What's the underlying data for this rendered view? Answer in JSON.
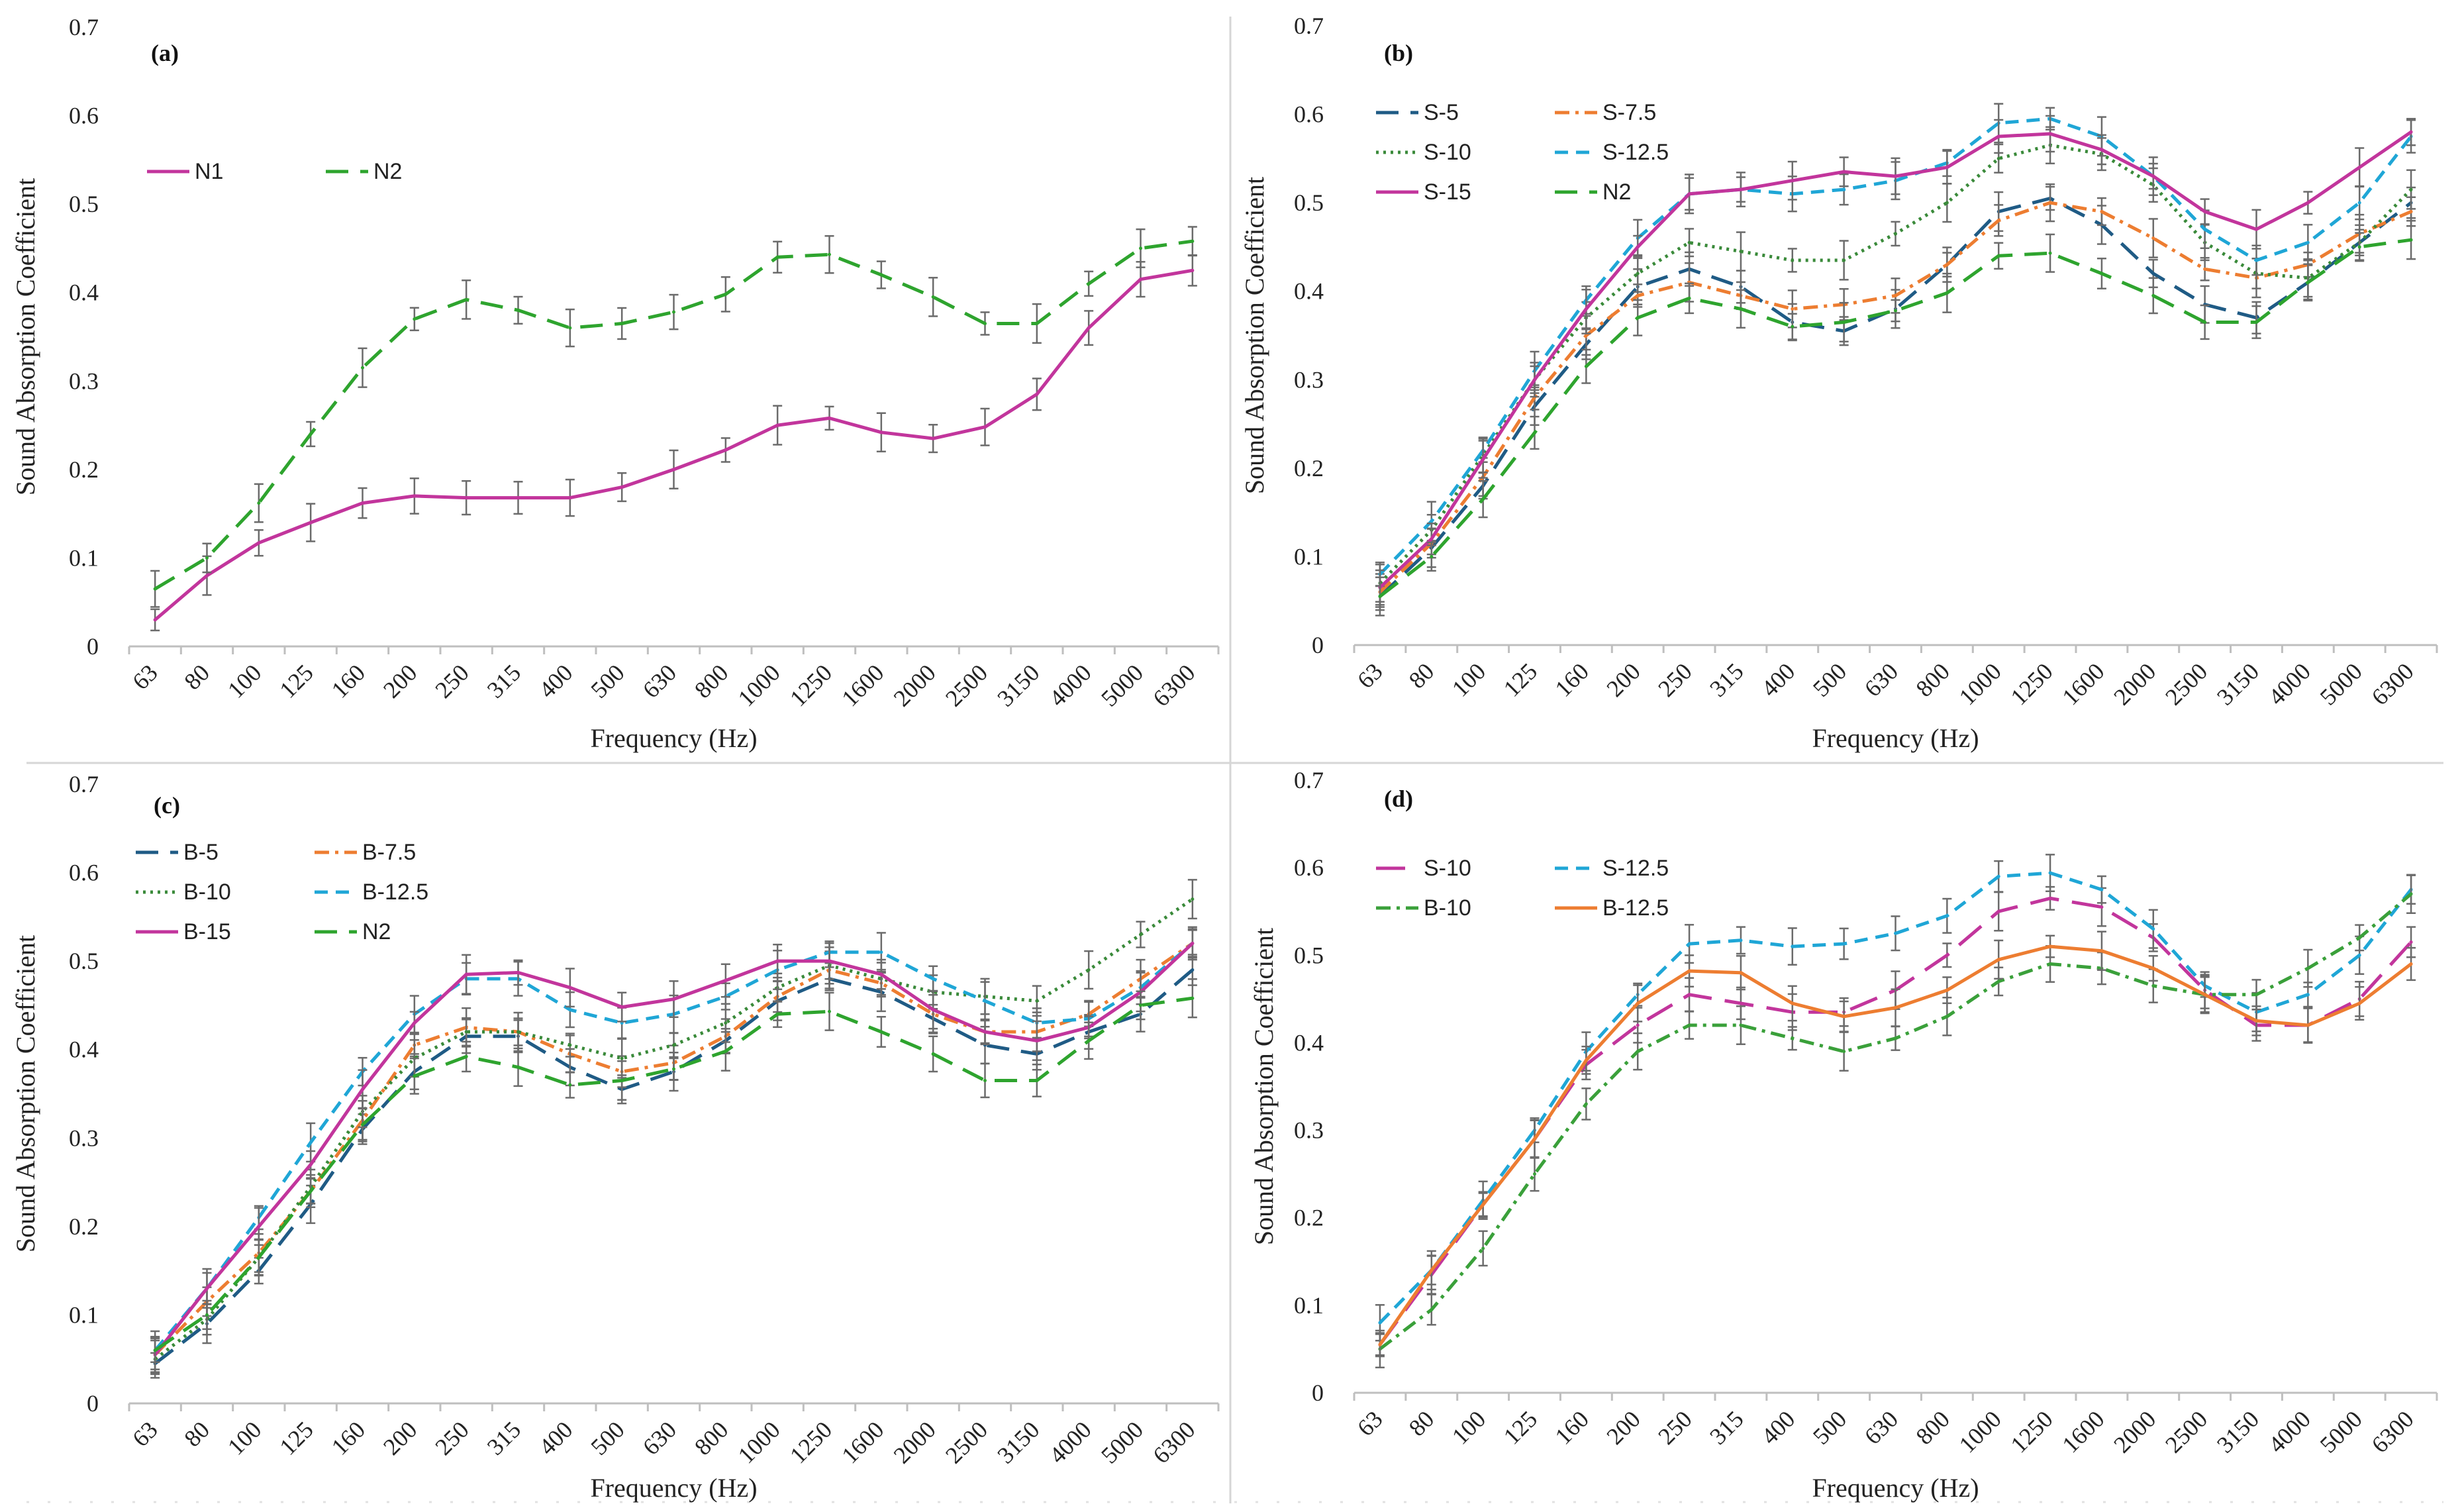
{
  "figure": {
    "x_ticks": [
      "63",
      "80",
      "100",
      "125",
      "160",
      "200",
      "250",
      "315",
      "400",
      "500",
      "630",
      "800",
      "1000",
      "1250",
      "1600",
      "2000",
      "2500",
      "3150",
      "4000",
      "5000",
      "6300"
    ],
    "y_ticks": [
      "0",
      "0.1",
      "0.2",
      "0.3",
      "0.4",
      "0.5",
      "0.6",
      "0.7"
    ]
  },
  "chart_data": [
    {
      "panel": "(a)",
      "type": "line",
      "xlabel": "Frequency (Hz)",
      "ylabel": "Sound Absorption Coefficient",
      "ylim": [
        0,
        0.7
      ],
      "categories": [
        "63",
        "80",
        "100",
        "125",
        "160",
        "200",
        "250",
        "315",
        "400",
        "500",
        "630",
        "800",
        "1000",
        "1250",
        "1600",
        "2000",
        "2500",
        "3150",
        "4000",
        "5000",
        "6300"
      ],
      "legend": "top-left",
      "series": [
        {
          "name": "N1",
          "color": "#c2359c",
          "dash": "solid",
          "values": [
            0.03,
            0.08,
            0.117,
            0.14,
            0.162,
            0.17,
            0.168,
            0.168,
            0.168,
            0.18,
            0.2,
            0.222,
            0.25,
            0.258,
            0.242,
            0.235,
            0.248,
            0.285,
            0.36,
            0.415,
            0.425
          ]
        },
        {
          "name": "N2",
          "color": "#2ea42e",
          "dash": "long",
          "values": [
            0.065,
            0.1,
            0.162,
            0.24,
            0.315,
            0.37,
            0.392,
            0.38,
            0.36,
            0.365,
            0.378,
            0.398,
            0.44,
            0.443,
            0.42,
            0.395,
            0.365,
            0.365,
            0.41,
            0.45,
            0.458
          ]
        }
      ]
    },
    {
      "panel": "(b)",
      "type": "line",
      "xlabel": "Frequency (Hz)",
      "ylabel": "Sound Absorption Coefficient",
      "ylim": [
        0,
        0.7
      ],
      "categories": [
        "63",
        "80",
        "100",
        "125",
        "160",
        "200",
        "250",
        "315",
        "400",
        "500",
        "630",
        "800",
        "1000",
        "1250",
        "1600",
        "2000",
        "2500",
        "3150",
        "4000",
        "5000",
        "6300"
      ],
      "legend": "top-left",
      "series": [
        {
          "name": "S-5",
          "color": "#1f5b85",
          "dash": "long",
          "values": [
            0.055,
            0.11,
            0.18,
            0.27,
            0.34,
            0.405,
            0.425,
            0.405,
            0.365,
            0.355,
            0.38,
            0.43,
            0.49,
            0.505,
            0.475,
            0.42,
            0.385,
            0.37,
            0.41,
            0.455,
            0.5
          ]
        },
        {
          "name": "S-7.5",
          "color": "#ed7d31",
          "dash": "dashdot",
          "values": [
            0.06,
            0.115,
            0.19,
            0.28,
            0.35,
            0.395,
            0.41,
            0.395,
            0.38,
            0.385,
            0.395,
            0.43,
            0.48,
            0.5,
            0.49,
            0.46,
            0.425,
            0.415,
            0.43,
            0.465,
            0.49
          ]
        },
        {
          "name": "S-10",
          "color": "#3a8a3a",
          "dash": "dot",
          "values": [
            0.07,
            0.13,
            0.215,
            0.3,
            0.37,
            0.42,
            0.455,
            0.445,
            0.435,
            0.435,
            0.465,
            0.5,
            0.55,
            0.565,
            0.555,
            0.52,
            0.455,
            0.42,
            0.415,
            0.455,
            0.515
          ]
        },
        {
          "name": "S-12.5",
          "color": "#1fa6d6",
          "dash": "dash",
          "values": [
            0.08,
            0.14,
            0.22,
            0.31,
            0.39,
            0.46,
            0.51,
            0.515,
            0.51,
            0.515,
            0.525,
            0.545,
            0.59,
            0.595,
            0.575,
            0.53,
            0.47,
            0.435,
            0.455,
            0.5,
            0.575
          ]
        },
        {
          "name": "S-15",
          "color": "#c2359c",
          "dash": "solid",
          "values": [
            0.065,
            0.12,
            0.21,
            0.3,
            0.38,
            0.45,
            0.51,
            0.515,
            0.525,
            0.535,
            0.53,
            0.54,
            0.575,
            0.578,
            0.56,
            0.53,
            0.49,
            0.47,
            0.5,
            0.54,
            0.58
          ]
        },
        {
          "name": "N2",
          "color": "#2ea42e",
          "dash": "long",
          "values": [
            0.055,
            0.1,
            0.165,
            0.24,
            0.315,
            0.37,
            0.392,
            0.38,
            0.36,
            0.365,
            0.378,
            0.398,
            0.44,
            0.443,
            0.42,
            0.395,
            0.365,
            0.365,
            0.41,
            0.45,
            0.458
          ]
        }
      ]
    },
    {
      "panel": "(c)",
      "type": "line",
      "xlabel": "Frequency (Hz)",
      "ylabel": "Sound Absorption Coefficient",
      "ylim": [
        0,
        0.7
      ],
      "categories": [
        "63",
        "80",
        "100",
        "125",
        "160",
        "200",
        "250",
        "315",
        "400",
        "500",
        "630",
        "800",
        "1000",
        "1250",
        "1600",
        "2000",
        "2500",
        "3150",
        "4000",
        "5000",
        "6300"
      ],
      "legend": "top-left",
      "series": [
        {
          "name": "B-5",
          "color": "#1f5b85",
          "dash": "long",
          "values": [
            0.045,
            0.09,
            0.15,
            0.225,
            0.31,
            0.375,
            0.415,
            0.415,
            0.38,
            0.355,
            0.375,
            0.41,
            0.455,
            0.48,
            0.465,
            0.435,
            0.405,
            0.395,
            0.42,
            0.44,
            0.49
          ]
        },
        {
          "name": "B-7.5",
          "color": "#ed7d31",
          "dash": "dashdot",
          "values": [
            0.055,
            0.115,
            0.17,
            0.24,
            0.32,
            0.405,
            0.425,
            0.42,
            0.395,
            0.375,
            0.385,
            0.415,
            0.46,
            0.49,
            0.475,
            0.44,
            0.42,
            0.42,
            0.44,
            0.48,
            0.52
          ]
        },
        {
          "name": "B-10",
          "color": "#3a8a3a",
          "dash": "dot",
          "values": [
            0.05,
            0.095,
            0.165,
            0.245,
            0.33,
            0.39,
            0.42,
            0.42,
            0.405,
            0.39,
            0.405,
            0.43,
            0.47,
            0.495,
            0.48,
            0.465,
            0.46,
            0.455,
            0.49,
            0.53,
            0.57
          ]
        },
        {
          "name": "B-12.5",
          "color": "#1fa6d6",
          "dash": "dash",
          "values": [
            0.06,
            0.13,
            0.21,
            0.295,
            0.375,
            0.44,
            0.48,
            0.48,
            0.445,
            0.43,
            0.44,
            0.46,
            0.49,
            0.51,
            0.51,
            0.48,
            0.455,
            0.43,
            0.435,
            0.47,
            0.52
          ]
        },
        {
          "name": "B-15",
          "color": "#c2359c",
          "dash": "solid",
          "values": [
            0.055,
            0.13,
            0.2,
            0.27,
            0.355,
            0.43,
            0.485,
            0.487,
            0.47,
            0.448,
            0.457,
            0.478,
            0.5,
            0.5,
            0.485,
            0.445,
            0.42,
            0.41,
            0.425,
            0.465,
            0.52
          ]
        },
        {
          "name": "N2",
          "color": "#2ea42e",
          "dash": "long",
          "values": [
            0.06,
            0.1,
            0.165,
            0.24,
            0.315,
            0.37,
            0.392,
            0.38,
            0.36,
            0.365,
            0.378,
            0.398,
            0.44,
            0.443,
            0.42,
            0.395,
            0.365,
            0.365,
            0.41,
            0.45,
            0.458
          ]
        }
      ]
    },
    {
      "panel": "(d)",
      "type": "line",
      "xlabel": "Frequency (Hz)",
      "ylabel": "Sound Absorption Coefficient",
      "ylim": [
        0,
        0.7
      ],
      "categories": [
        "63",
        "80",
        "100",
        "125",
        "160",
        "200",
        "250",
        "315",
        "400",
        "500",
        "630",
        "800",
        "1000",
        "1250",
        "1600",
        "2000",
        "2500",
        "3150",
        "4000",
        "5000",
        "6300"
      ],
      "legend": "top-left",
      "series": [
        {
          "name": "S-10",
          "color": "#c2359c",
          "dash": "longdash",
          "values": [
            0.055,
            0.135,
            0.215,
            0.29,
            0.375,
            0.42,
            0.455,
            0.445,
            0.435,
            0.435,
            0.46,
            0.5,
            0.55,
            0.565,
            0.555,
            0.52,
            0.46,
            0.42,
            0.42,
            0.45,
            0.515
          ]
        },
        {
          "name": "S-12.5",
          "color": "#1fa6d6",
          "dash": "dash",
          "values": [
            0.08,
            0.14,
            0.22,
            0.3,
            0.39,
            0.455,
            0.513,
            0.517,
            0.51,
            0.513,
            0.525,
            0.545,
            0.59,
            0.594,
            0.575,
            0.53,
            0.465,
            0.435,
            0.455,
            0.5,
            0.575
          ]
        },
        {
          "name": "B-10",
          "color": "#3aa03a",
          "dash": "dashdot",
          "values": [
            0.05,
            0.095,
            0.165,
            0.25,
            0.33,
            0.39,
            0.42,
            0.42,
            0.405,
            0.39,
            0.405,
            0.43,
            0.47,
            0.49,
            0.485,
            0.465,
            0.455,
            0.455,
            0.485,
            0.52,
            0.57
          ]
        },
        {
          "name": "B-12.5",
          "color": "#ed7d31",
          "dash": "solid",
          "values": [
            0.055,
            0.14,
            0.215,
            0.29,
            0.38,
            0.445,
            0.482,
            0.48,
            0.445,
            0.43,
            0.44,
            0.46,
            0.495,
            0.51,
            0.505,
            0.485,
            0.455,
            0.425,
            0.42,
            0.445,
            0.49
          ]
        }
      ]
    }
  ]
}
